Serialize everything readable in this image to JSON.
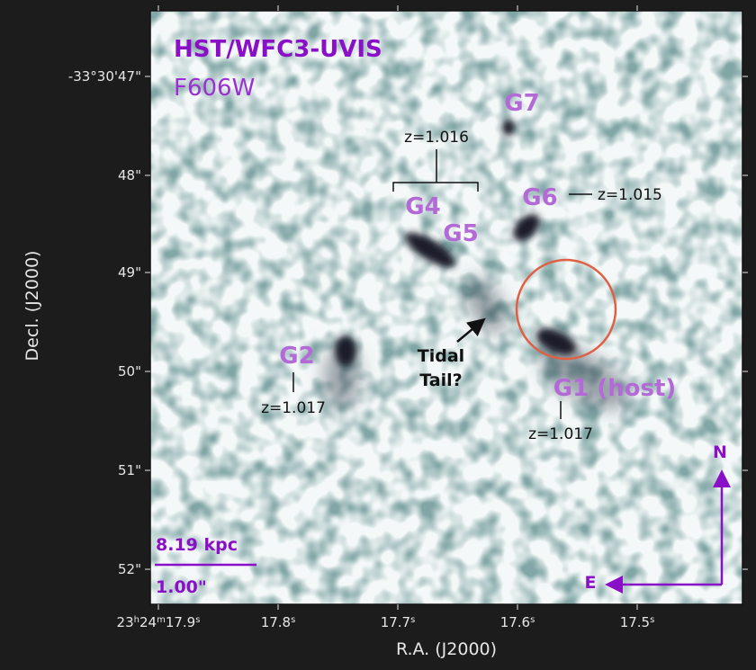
{
  "figure": {
    "title": "HST/WFC3-UVIS",
    "filter": "F606W",
    "x_axis_label": "R.A. (J2000)",
    "y_axis_label": "Decl. (J2000)",
    "x_ticks": [
      [
        "23",
        "h",
        "24",
        "m",
        "17.9",
        "s"
      ],
      [
        "17.8",
        "s"
      ],
      [
        "17.7",
        "s"
      ],
      [
        "17.6",
        "s"
      ],
      [
        "17.5",
        "s"
      ]
    ],
    "y_ticks": [
      "-33°30'47\"",
      "48\"",
      "49\"",
      "50\"",
      "51\"",
      "52\""
    ],
    "galaxies": {
      "g7": "G7",
      "g6": "G6",
      "g4": "G4",
      "g5": "G5",
      "g2": "G2",
      "g1": "G1 (host)"
    },
    "redshifts": {
      "g45": "z=1.016",
      "g6": "z=1.015",
      "g2": "z=1.017",
      "g1": "z=1.017"
    },
    "tidal_tail": [
      "Tidal",
      "Tail?"
    ],
    "scale_bar": {
      "physical": "8.19 kpc",
      "angular": "1.00\""
    },
    "compass": {
      "north": "N",
      "east": "E"
    }
  }
}
